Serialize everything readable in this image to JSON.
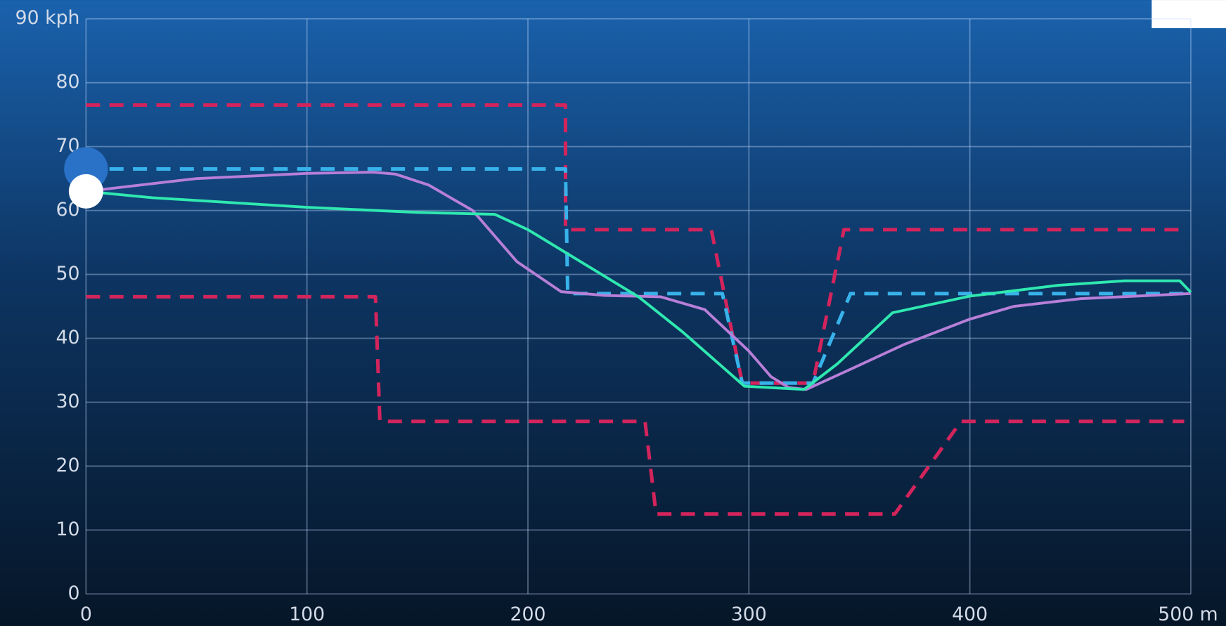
{
  "chart_data": {
    "type": "line",
    "xlim": [
      0,
      500
    ],
    "xticks": [
      0,
      100,
      200,
      300,
      400,
      {
        "value": 500,
        "label": "500 m"
      }
    ],
    "ylim": [
      0,
      90
    ],
    "yticks": [
      0,
      10,
      20,
      30,
      40,
      50,
      60,
      70,
      80,
      {
        "value": 90,
        "label": "90 kph"
      }
    ],
    "grid": true,
    "series": [
      {
        "color": "#d3245c",
        "dashed": true,
        "x": [
          0,
          217,
          217,
          283,
          297,
          329,
          343,
          497
        ],
        "values": [
          76.5,
          76.5,
          57,
          57,
          33,
          33,
          57,
          57
        ]
      },
      {
        "color": "#d3245c",
        "dashed": true,
        "x": [
          0,
          131,
          133,
          253,
          258,
          366,
          396,
          497
        ],
        "values": [
          46.5,
          46.5,
          27,
          27,
          12.5,
          12.5,
          27,
          27
        ]
      },
      {
        "color": "#38b2ea",
        "dashed": true,
        "x": [
          0,
          217,
          218,
          288,
          297,
          329,
          346,
          500
        ],
        "values": [
          66.5,
          66.5,
          47,
          47,
          33,
          33,
          47,
          47
        ]
      },
      {
        "color": "#b77fd8",
        "dashed": false,
        "x": [
          0,
          50,
          100,
          130,
          140,
          155,
          175,
          195,
          215,
          235,
          260,
          280,
          300,
          310,
          318,
          326,
          345,
          370,
          400,
          420,
          450,
          500
        ],
        "values": [
          63,
          65,
          65.8,
          66,
          65.7,
          64,
          60,
          52,
          47.3,
          46.7,
          46.5,
          44.5,
          38,
          34,
          32.3,
          32,
          35,
          39,
          43,
          45,
          46.2,
          47
        ]
      },
      {
        "color": "#2fe8b0",
        "dashed": false,
        "x": [
          0,
          30,
          100,
          150,
          185,
          200,
          250,
          270,
          298,
          325,
          340,
          365,
          400,
          440,
          470,
          495,
          500
        ],
        "values": [
          63,
          62,
          60.5,
          59.7,
          59.4,
          57,
          46.5,
          41,
          32.5,
          32,
          36,
          44,
          46.6,
          48.3,
          49,
          49,
          47.2
        ]
      }
    ]
  }
}
